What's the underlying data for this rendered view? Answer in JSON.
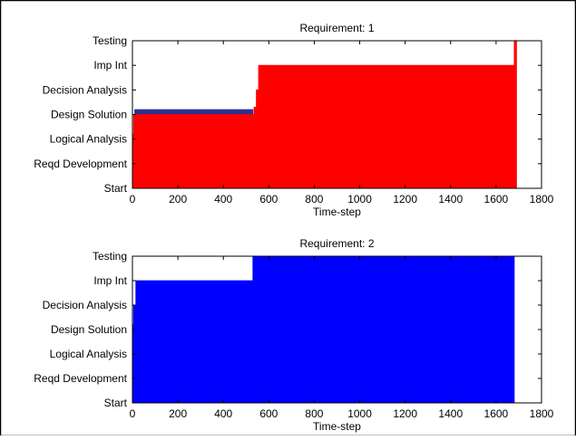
{
  "y_levels": [
    "Start",
    "Reqd Development",
    "Logical Analysis",
    "Design Solution",
    "Decision Analysis",
    "Imp Int",
    "Testing"
  ],
  "x_ticks": [
    0,
    200,
    400,
    600,
    800,
    1000,
    1200,
    1400,
    1600,
    1800
  ],
  "chart_data": [
    {
      "type": "area",
      "title": "Requirement: 1",
      "xlabel": "Time-step",
      "ylabel": "",
      "xlim": [
        0,
        1800
      ],
      "ylim": [
        0,
        6
      ],
      "grid": false,
      "series": [
        {
          "color": "#2e3192",
          "x": [
            0,
            10,
            10,
            530,
            530,
            1690
          ],
          "values": [
            2.2,
            2.2,
            3.2,
            3.2,
            0,
            0
          ]
        },
        {
          "color": "#ff0000",
          "x": [
            0,
            5,
            5,
            535,
            535,
            545,
            545,
            555,
            555,
            1680,
            1680,
            1690,
            1690
          ],
          "values": [
            2.2,
            2.2,
            3.0,
            3.0,
            3.3,
            3.3,
            4.0,
            4.0,
            5.0,
            5.0,
            6.0,
            6.0,
            0
          ]
        }
      ]
    },
    {
      "type": "area",
      "title": "Requirement: 2",
      "xlabel": "Time-step",
      "ylabel": "",
      "xlim": [
        0,
        1800
      ],
      "ylim": [
        0,
        6
      ],
      "grid": false,
      "series": [
        {
          "color": "#0000ff",
          "x": [
            0,
            5,
            5,
            15,
            15,
            530,
            530,
            1680,
            1680
          ],
          "values": [
            3.2,
            3.2,
            4.0,
            4.0,
            5.0,
            5.0,
            6.0,
            6.0,
            0
          ]
        }
      ]
    }
  ]
}
